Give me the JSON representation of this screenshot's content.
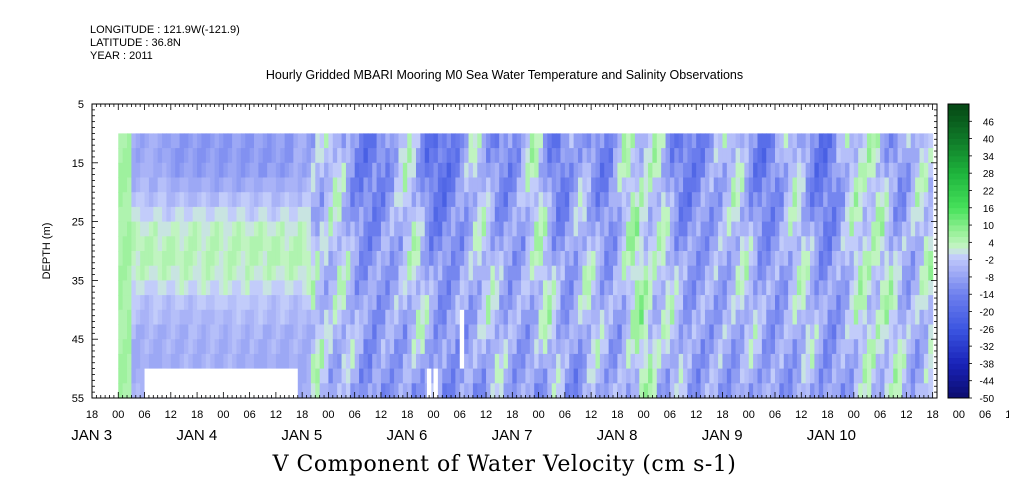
{
  "header": {
    "longitude": "LONGITUDE : 121.9W(-121.9)",
    "latitude": "LATITUDE : 36.8N",
    "year": "YEAR : 2011",
    "title": "Hourly Gridded MBARI Mooring M0 Sea Water Temperature and Salinity Observations"
  },
  "chart_data": {
    "type": "heatmap",
    "title": "Hourly Gridded MBARI Mooring M0 Sea Water Temperature and Salinity Observations",
    "xlabel": "V Component of Water Velocity (cm s-1)",
    "ylabel": "DEPTH (m)",
    "ylim": [
      5,
      55
    ],
    "y_inverted": true,
    "y_ticks": [
      5,
      15,
      25,
      35,
      45,
      55
    ],
    "x_start": "2011-01-02T18:00",
    "x_end": "2011-01-10T19:00",
    "x_hour_labels": [
      "18",
      "00",
      "06",
      "12",
      "18",
      "00",
      "06",
      "12",
      "18",
      "00",
      "06",
      "12",
      "18",
      "00",
      "06",
      "12",
      "18",
      "00",
      "06",
      "12",
      "18",
      "00",
      "06",
      "12",
      "18",
      "00",
      "06",
      "12",
      "18",
      "00",
      "06",
      "12",
      "18",
      "00",
      "06",
      "12",
      "18"
    ],
    "x_day_labels": [
      "JAN  3",
      "JAN  4",
      "JAN  5",
      "JAN  6",
      "JAN  7",
      "JAN  8",
      "JAN  9",
      "JAN 10"
    ],
    "colorbar_labels": [
      "46",
      "40",
      "34",
      "28",
      "22",
      "16",
      "10",
      "4",
      "-2",
      "-8",
      "-14",
      "-20",
      "-26",
      "-32",
      "-38",
      "-44",
      "-50"
    ],
    "colorbar_range": [
      -50,
      52
    ],
    "colorbar_step": 2,
    "data_depth_range": [
      10,
      55
    ],
    "data_start": "2011-01-03T00:00",
    "data_end": "2011-01-10T18:00",
    "gaps": [
      {
        "from": "2011-01-03T06:00",
        "to": "2011-01-04T17:00",
        "depth_from": 50,
        "depth_to": 55
      },
      {
        "from": "2011-01-05T22:30",
        "to": "2011-01-05T23:30",
        "depth_from": 50,
        "depth_to": 55
      },
      {
        "from": "2011-01-06T00:00",
        "to": "2011-01-06T01:00",
        "depth_from": 50,
        "depth_to": 55
      },
      {
        "from": "2011-01-06T06:00",
        "to": "2011-01-06T07:00",
        "depth_from": 40,
        "depth_to": 50
      }
    ],
    "colors": {
      "green_peak": "#22dd3a",
      "green_light": "#b8f5b8",
      "blue_light": "#aab5f5",
      "blue_mid": "#7f8ef0",
      "blue_deep": "#5a6ae6"
    }
  }
}
